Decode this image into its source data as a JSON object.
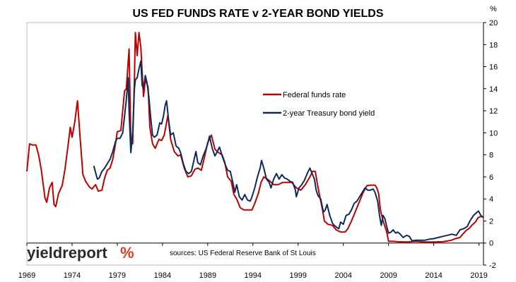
{
  "chart_data": {
    "type": "line",
    "title": "US FED FUNDS RATE v 2-YEAR BOND YIELDS",
    "ylabel": "%",
    "xlim": [
      1969,
      2019.5
    ],
    "ylim": [
      -2,
      20
    ],
    "x_ticks": [
      1969,
      1974,
      1979,
      1984,
      1989,
      1994,
      1999,
      2004,
      2009,
      2014,
      2019
    ],
    "x_tick_labels": [
      "1969",
      "1974",
      "1979",
      "1984",
      "1989",
      "1994",
      "1999",
      "2004",
      "2009",
      "2014",
      "2019"
    ],
    "y_ticks": [
      -2,
      0,
      2,
      4,
      6,
      8,
      10,
      12,
      14,
      16,
      18,
      20
    ],
    "y_tick_labels": [
      "-2",
      "0",
      "2",
      "4",
      "6",
      "8",
      "10",
      "12",
      "14",
      "16",
      "18",
      "20"
    ],
    "y_axis_side": "right",
    "grid": false,
    "legend_position": "center-right",
    "series": [
      {
        "name": "Federal funds rate",
        "color": "#c00000",
        "points": [
          [
            1969.0,
            6.5
          ],
          [
            1969.3,
            9.0
          ],
          [
            1969.6,
            8.9
          ],
          [
            1970.0,
            8.9
          ],
          [
            1970.3,
            8.0
          ],
          [
            1970.6,
            6.6
          ],
          [
            1971.0,
            4.1
          ],
          [
            1971.2,
            3.7
          ],
          [
            1971.5,
            5.0
          ],
          [
            1971.8,
            5.5
          ],
          [
            1972.0,
            3.5
          ],
          [
            1972.2,
            3.3
          ],
          [
            1972.5,
            4.5
          ],
          [
            1972.9,
            5.2
          ],
          [
            1973.2,
            6.6
          ],
          [
            1973.5,
            8.5
          ],
          [
            1973.8,
            10.5
          ],
          [
            1974.0,
            9.6
          ],
          [
            1974.3,
            11.0
          ],
          [
            1974.6,
            12.9
          ],
          [
            1974.9,
            9.4
          ],
          [
            1975.2,
            6.2
          ],
          [
            1975.5,
            5.6
          ],
          [
            1975.9,
            5.1
          ],
          [
            1976.2,
            4.9
          ],
          [
            1976.6,
            5.3
          ],
          [
            1976.9,
            4.7
          ],
          [
            1977.3,
            4.8
          ],
          [
            1977.6,
            5.9
          ],
          [
            1977.9,
            6.6
          ],
          [
            1978.2,
            6.8
          ],
          [
            1978.5,
            7.6
          ],
          [
            1978.8,
            9.0
          ],
          [
            1979.0,
            10.1
          ],
          [
            1979.4,
            10.2
          ],
          [
            1979.8,
            13.8
          ],
          [
            1980.0,
            14.0
          ],
          [
            1980.3,
            17.6
          ],
          [
            1980.5,
            9.5
          ],
          [
            1980.7,
            9.0
          ],
          [
            1980.9,
            15.0
          ],
          [
            1981.0,
            19.1
          ],
          [
            1981.2,
            17.0
          ],
          [
            1981.4,
            19.1
          ],
          [
            1981.6,
            17.8
          ],
          [
            1981.9,
            13.3
          ],
          [
            1982.1,
            14.8
          ],
          [
            1982.4,
            14.2
          ],
          [
            1982.6,
            10.5
          ],
          [
            1982.9,
            9.0
          ],
          [
            1983.2,
            8.6
          ],
          [
            1983.6,
            9.4
          ],
          [
            1983.9,
            9.3
          ],
          [
            1984.2,
            9.8
          ],
          [
            1984.6,
            11.6
          ],
          [
            1984.9,
            9.4
          ],
          [
            1985.3,
            8.3
          ],
          [
            1985.7,
            7.9
          ],
          [
            1986.0,
            8.0
          ],
          [
            1986.4,
            6.8
          ],
          [
            1986.8,
            6.0
          ],
          [
            1987.2,
            6.1
          ],
          [
            1987.6,
            6.7
          ],
          [
            1987.9,
            6.8
          ],
          [
            1988.3,
            6.6
          ],
          [
            1988.7,
            8.0
          ],
          [
            1989.0,
            9.1
          ],
          [
            1989.4,
            9.8
          ],
          [
            1989.8,
            8.5
          ],
          [
            1990.2,
            8.2
          ],
          [
            1990.6,
            8.0
          ],
          [
            1990.9,
            7.3
          ],
          [
            1991.2,
            6.0
          ],
          [
            1991.6,
            5.6
          ],
          [
            1991.9,
            4.4
          ],
          [
            1992.2,
            4.0
          ],
          [
            1992.6,
            3.2
          ],
          [
            1993.0,
            3.0
          ],
          [
            1993.5,
            3.0
          ],
          [
            1993.9,
            3.0
          ],
          [
            1994.2,
            3.6
          ],
          [
            1994.6,
            4.5
          ],
          [
            1994.9,
            5.5
          ],
          [
            1995.2,
            6.0
          ],
          [
            1995.6,
            5.8
          ],
          [
            1995.9,
            5.6
          ],
          [
            1996.3,
            5.3
          ],
          [
            1996.8,
            5.3
          ],
          [
            1997.3,
            5.5
          ],
          [
            1997.8,
            5.5
          ],
          [
            1998.3,
            5.5
          ],
          [
            1998.8,
            5.0
          ],
          [
            1999.3,
            4.8
          ],
          [
            1999.8,
            5.3
          ],
          [
            2000.3,
            6.0
          ],
          [
            2000.6,
            6.5
          ],
          [
            2000.9,
            6.5
          ],
          [
            2001.1,
            5.5
          ],
          [
            2001.4,
            4.2
          ],
          [
            2001.7,
            3.0
          ],
          [
            2001.9,
            2.0
          ],
          [
            2002.3,
            1.7
          ],
          [
            2002.8,
            1.6
          ],
          [
            2003.2,
            1.2
          ],
          [
            2003.7,
            1.0
          ],
          [
            2004.2,
            1.0
          ],
          [
            2004.5,
            1.3
          ],
          [
            2004.9,
            2.0
          ],
          [
            2005.3,
            2.8
          ],
          [
            2005.8,
            3.8
          ],
          [
            2006.2,
            4.6
          ],
          [
            2006.6,
            5.2
          ],
          [
            2007.0,
            5.25
          ],
          [
            2007.5,
            5.25
          ],
          [
            2007.7,
            5.0
          ],
          [
            2007.9,
            4.5
          ],
          [
            2008.1,
            3.0
          ],
          [
            2008.4,
            2.0
          ],
          [
            2008.8,
            1.0
          ],
          [
            2009.0,
            0.16
          ],
          [
            2009.5,
            0.16
          ],
          [
            2010.0,
            0.12
          ],
          [
            2011.0,
            0.1
          ],
          [
            2012.0,
            0.15
          ],
          [
            2013.0,
            0.1
          ],
          [
            2014.0,
            0.09
          ],
          [
            2015.0,
            0.12
          ],
          [
            2015.9,
            0.24
          ],
          [
            2016.3,
            0.37
          ],
          [
            2016.9,
            0.5
          ],
          [
            2017.2,
            0.8
          ],
          [
            2017.6,
            1.15
          ],
          [
            2017.9,
            1.3
          ],
          [
            2018.2,
            1.6
          ],
          [
            2018.6,
            1.9
          ],
          [
            2018.9,
            2.3
          ],
          [
            2019.2,
            2.4
          ],
          [
            2019.5,
            2.4
          ]
        ]
      },
      {
        "name": "2-year Treasury bond yield",
        "color": "#102a5c",
        "points": [
          [
            1976.4,
            7.0
          ],
          [
            1976.6,
            6.4
          ],
          [
            1976.8,
            5.8
          ],
          [
            1977.0,
            5.9
          ],
          [
            1977.3,
            6.5
          ],
          [
            1977.6,
            6.8
          ],
          [
            1977.9,
            7.2
          ],
          [
            1978.2,
            7.6
          ],
          [
            1978.5,
            8.3
          ],
          [
            1978.8,
            9.2
          ],
          [
            1979.0,
            9.5
          ],
          [
            1979.3,
            9.5
          ],
          [
            1979.6,
            10.0
          ],
          [
            1979.8,
            11.5
          ],
          [
            1980.0,
            13.0
          ],
          [
            1980.2,
            15.0
          ],
          [
            1980.3,
            12.0
          ],
          [
            1980.5,
            8.2
          ],
          [
            1980.7,
            10.0
          ],
          [
            1980.9,
            14.0
          ],
          [
            1981.0,
            14.8
          ],
          [
            1981.2,
            15.0
          ],
          [
            1981.4,
            15.8
          ],
          [
            1981.6,
            16.5
          ],
          [
            1981.75,
            14.3
          ],
          [
            1981.9,
            14.0
          ],
          [
            1982.1,
            15.2
          ],
          [
            1982.3,
            14.5
          ],
          [
            1982.5,
            13.2
          ],
          [
            1982.7,
            11.3
          ],
          [
            1982.9,
            9.8
          ],
          [
            1983.1,
            9.6
          ],
          [
            1983.4,
            9.8
          ],
          [
            1983.7,
            10.9
          ],
          [
            1983.9,
            10.8
          ],
          [
            1984.1,
            11.5
          ],
          [
            1984.3,
            12.5
          ],
          [
            1984.45,
            12.9
          ],
          [
            1984.7,
            11.0
          ],
          [
            1984.9,
            9.8
          ],
          [
            1985.2,
            10.0
          ],
          [
            1985.5,
            8.8
          ],
          [
            1985.8,
            8.6
          ],
          [
            1986.0,
            8.2
          ],
          [
            1986.3,
            7.2
          ],
          [
            1986.6,
            6.5
          ],
          [
            1986.9,
            6.3
          ],
          [
            1987.2,
            6.5
          ],
          [
            1987.5,
            7.6
          ],
          [
            1987.7,
            8.3
          ],
          [
            1987.9,
            7.3
          ],
          [
            1988.2,
            7.1
          ],
          [
            1988.5,
            7.9
          ],
          [
            1988.8,
            8.5
          ],
          [
            1989.0,
            9.0
          ],
          [
            1989.2,
            9.7
          ],
          [
            1989.5,
            8.6
          ],
          [
            1989.8,
            7.9
          ],
          [
            1990.0,
            8.2
          ],
          [
            1990.3,
            8.7
          ],
          [
            1990.6,
            7.9
          ],
          [
            1990.9,
            7.2
          ],
          [
            1991.2,
            6.6
          ],
          [
            1991.5,
            6.5
          ],
          [
            1991.8,
            5.4
          ],
          [
            1992.0,
            4.6
          ],
          [
            1992.2,
            5.3
          ],
          [
            1992.5,
            4.2
          ],
          [
            1992.8,
            3.9
          ],
          [
            1993.1,
            4.4
          ],
          [
            1993.4,
            3.9
          ],
          [
            1993.7,
            3.8
          ],
          [
            1993.9,
            4.2
          ],
          [
            1994.2,
            5.0
          ],
          [
            1994.5,
            6.0
          ],
          [
            1994.8,
            6.8
          ],
          [
            1994.95,
            7.5
          ],
          [
            1995.2,
            6.8
          ],
          [
            1995.5,
            5.8
          ],
          [
            1995.8,
            5.5
          ],
          [
            1996.0,
            5.0
          ],
          [
            1996.3,
            5.8
          ],
          [
            1996.6,
            6.3
          ],
          [
            1996.9,
            5.8
          ],
          [
            1997.2,
            6.2
          ],
          [
            1997.5,
            5.9
          ],
          [
            1997.8,
            5.8
          ],
          [
            1998.1,
            5.6
          ],
          [
            1998.4,
            5.5
          ],
          [
            1998.7,
            4.8
          ],
          [
            1998.8,
            4.2
          ],
          [
            1999.1,
            5.0
          ],
          [
            1999.4,
            5.3
          ],
          [
            1999.7,
            5.7
          ],
          [
            2000.0,
            6.3
          ],
          [
            2000.3,
            6.8
          ],
          [
            2000.5,
            6.4
          ],
          [
            2000.8,
            5.8
          ],
          [
            2001.0,
            4.8
          ],
          [
            2001.2,
            4.3
          ],
          [
            2001.5,
            4.0
          ],
          [
            2001.8,
            2.8
          ],
          [
            2002.0,
            3.0
          ],
          [
            2002.2,
            3.5
          ],
          [
            2002.5,
            2.5
          ],
          [
            2002.8,
            1.8
          ],
          [
            2003.0,
            1.6
          ],
          [
            2003.3,
            1.4
          ],
          [
            2003.5,
            1.3
          ],
          [
            2003.7,
            1.9
          ],
          [
            2004.0,
            1.7
          ],
          [
            2004.3,
            2.5
          ],
          [
            2004.6,
            2.6
          ],
          [
            2004.9,
            3.0
          ],
          [
            2005.2,
            3.6
          ],
          [
            2005.5,
            3.8
          ],
          [
            2005.8,
            4.2
          ],
          [
            2006.1,
            4.6
          ],
          [
            2006.4,
            5.0
          ],
          [
            2006.7,
            4.8
          ],
          [
            2007.0,
            4.8
          ],
          [
            2007.3,
            4.9
          ],
          [
            2007.5,
            4.6
          ],
          [
            2007.8,
            3.8
          ],
          [
            2008.0,
            2.5
          ],
          [
            2008.2,
            1.6
          ],
          [
            2008.4,
            2.5
          ],
          [
            2008.6,
            2.2
          ],
          [
            2008.8,
            1.5
          ],
          [
            2009.0,
            0.9
          ],
          [
            2009.3,
            1.0
          ],
          [
            2009.5,
            1.2
          ],
          [
            2009.8,
            0.9
          ],
          [
            2010.0,
            1.0
          ],
          [
            2010.3,
            0.8
          ],
          [
            2010.6,
            0.5
          ],
          [
            2011.0,
            0.7
          ],
          [
            2011.3,
            0.6
          ],
          [
            2011.6,
            0.2
          ],
          [
            2012.0,
            0.25
          ],
          [
            2012.5,
            0.25
          ],
          [
            2013.0,
            0.25
          ],
          [
            2013.5,
            0.35
          ],
          [
            2014.0,
            0.4
          ],
          [
            2014.5,
            0.5
          ],
          [
            2015.0,
            0.6
          ],
          [
            2015.5,
            0.7
          ],
          [
            2016.0,
            0.8
          ],
          [
            2016.5,
            0.7
          ],
          [
            2016.9,
            1.2
          ],
          [
            2017.3,
            1.3
          ],
          [
            2017.7,
            1.5
          ],
          [
            2018.0,
            2.0
          ],
          [
            2018.4,
            2.5
          ],
          [
            2018.8,
            2.8
          ],
          [
            2018.95,
            2.9
          ],
          [
            2019.2,
            2.5
          ],
          [
            2019.5,
            2.3
          ]
        ]
      }
    ]
  },
  "brand": {
    "name": "yieldreport",
    "symbol": "%"
  },
  "source_note": "sources: US Federal Reserve Bank of St Louis"
}
